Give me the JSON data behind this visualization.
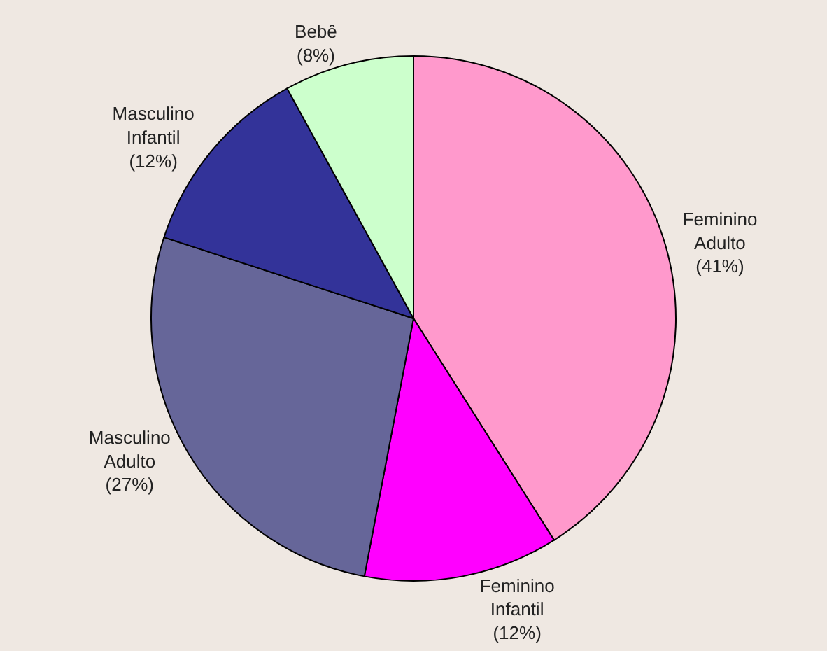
{
  "chart_data": {
    "type": "pie",
    "categories": [
      "Feminino Adulto",
      "Feminino Infantil",
      "Masculino Adulto",
      "Masculino Infantil",
      "Bebê"
    ],
    "values": [
      41,
      12,
      27,
      12,
      8
    ],
    "value_labels": [
      "(41%)",
      "(12%)",
      "(27%)",
      "(12%)",
      "(8%)"
    ],
    "colors": [
      "#ff99cc",
      "#ff00ff",
      "#666699",
      "#333399",
      "#ccffcc"
    ],
    "legend": false
  }
}
